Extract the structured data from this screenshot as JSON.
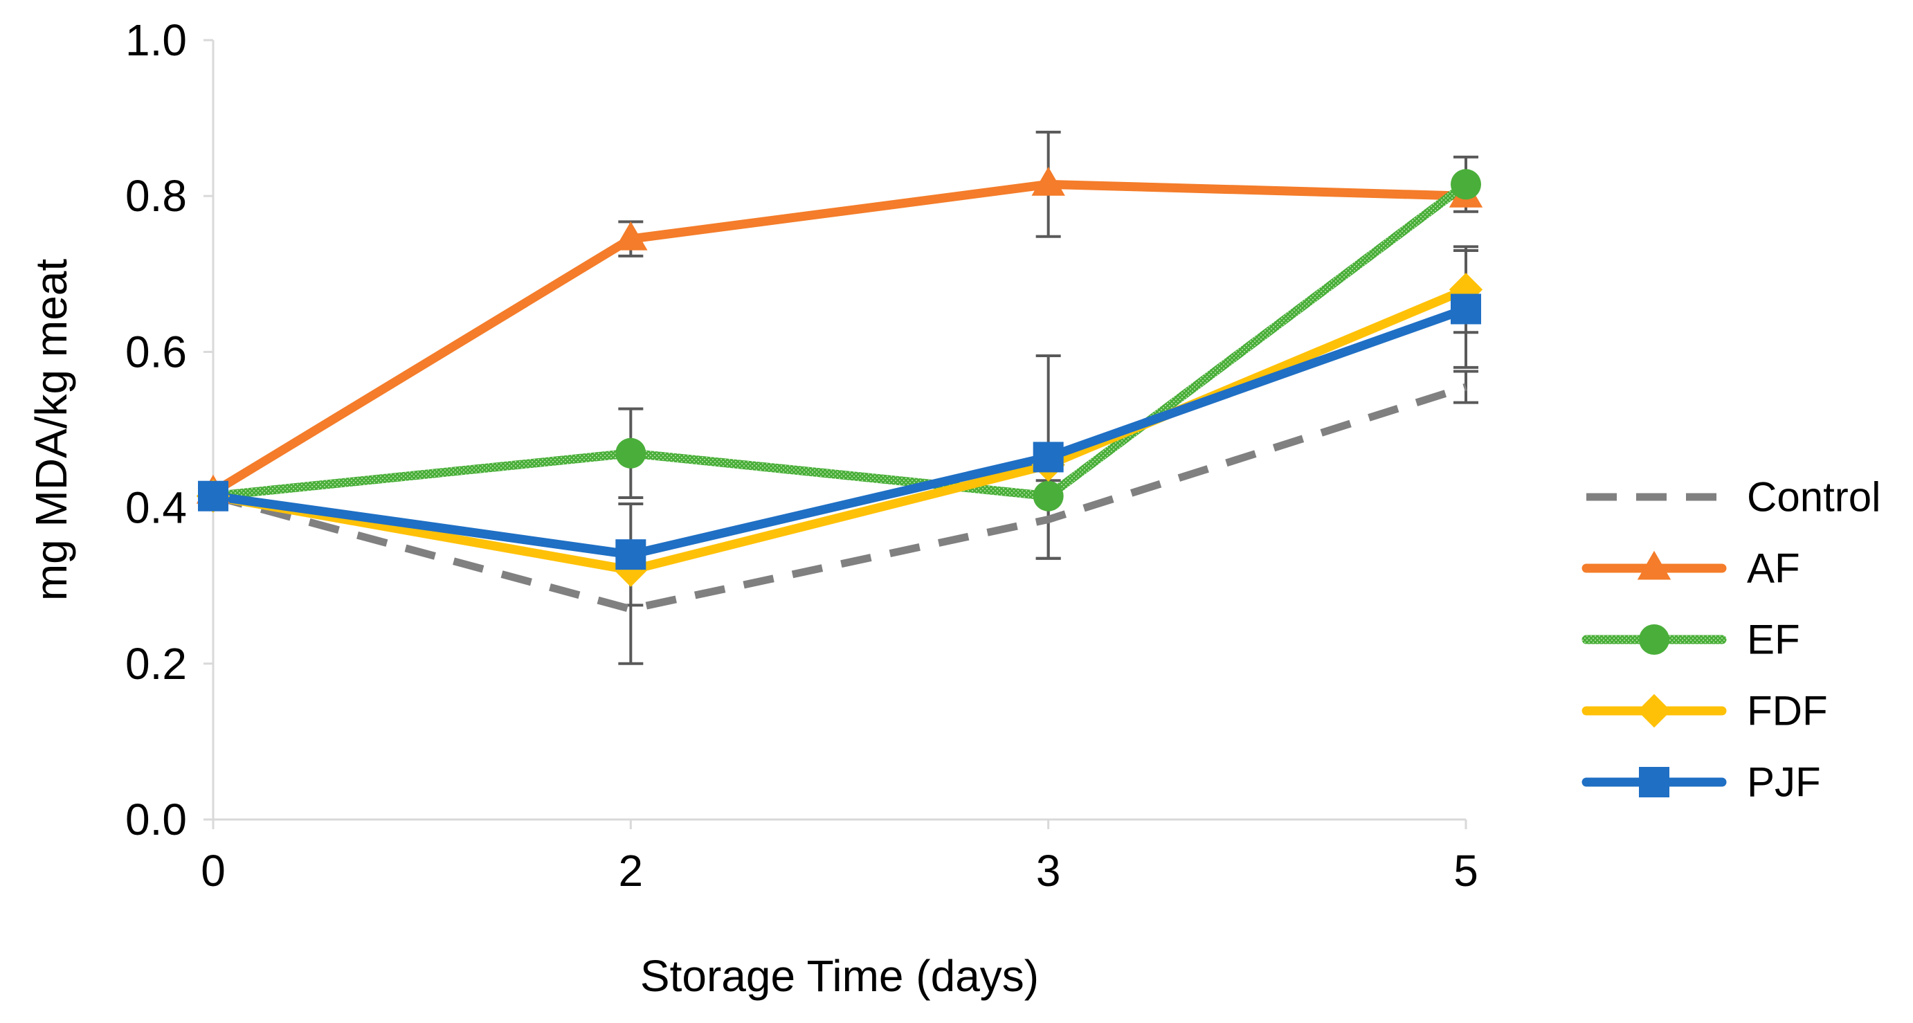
{
  "chart_data": {
    "type": "line",
    "title": "",
    "xlabel": "Storage Time (days)",
    "ylabel": "mg MDA/kg meat",
    "categories": [
      "0",
      "2",
      "3",
      "5"
    ],
    "ylim": [
      0.0,
      1.0
    ],
    "yticks": [
      "0.0",
      "0.2",
      "0.4",
      "0.6",
      "0.8",
      "1.0"
    ],
    "grid": false,
    "legend_position": "right",
    "series": [
      {
        "name": "Control",
        "color": "#808080",
        "line_style": "dashed",
        "marker": "none",
        "values": [
          0.415,
          0.27,
          0.385,
          0.555
        ],
        "errors": [
          0.0,
          0.07,
          0.05,
          0.02
        ]
      },
      {
        "name": "AF",
        "color": "#F47C2A",
        "line_style": "solid",
        "marker": "triangle",
        "values": [
          0.42,
          0.745,
          0.815,
          0.8
        ],
        "errors": [
          0.0,
          0.022,
          0.067,
          0.0
        ]
      },
      {
        "name": "EF",
        "color": "#4AAE3A",
        "line_style": "dotted",
        "marker": "circle",
        "values": [
          0.415,
          0.47,
          0.415,
          0.815
        ],
        "errors": [
          0.0,
          0.057,
          0.0,
          0.035
        ]
      },
      {
        "name": "FDF",
        "color": "#FFC107",
        "line_style": "solid",
        "marker": "diamond",
        "values": [
          0.415,
          0.32,
          0.455,
          0.68
        ],
        "errors": [
          0.0,
          0.0,
          0.0,
          0.055
        ]
      },
      {
        "name": "PJF",
        "color": "#1F6FC4",
        "line_style": "solid",
        "marker": "square",
        "values": [
          0.415,
          0.34,
          0.465,
          0.655
        ],
        "errors": [
          0.0,
          0.065,
          0.13,
          0.075
        ]
      }
    ]
  }
}
